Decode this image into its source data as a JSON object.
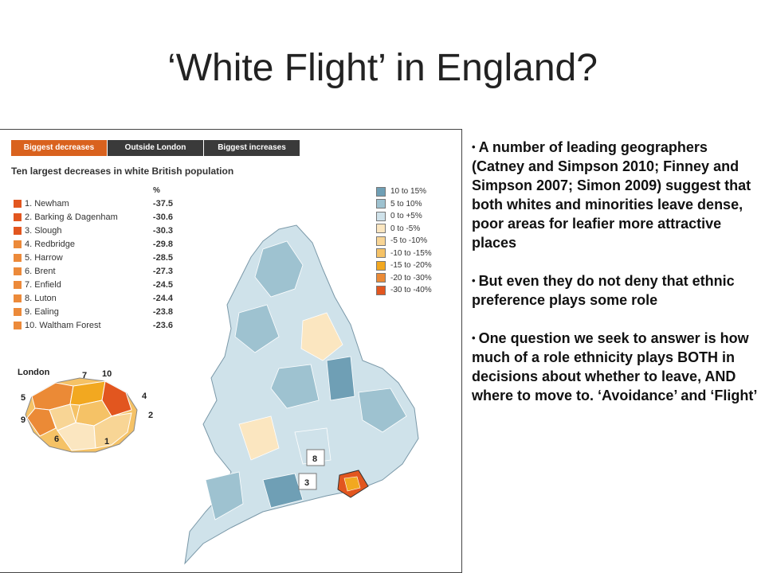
{
  "slide": {
    "title": "‘White Flight’ in England?"
  },
  "figure": {
    "tabs": [
      {
        "label": "Biggest decreases",
        "active": true,
        "color": "#d9621e"
      },
      {
        "label": "Outside London",
        "active": false,
        "color": "#3a3a3a"
      },
      {
        "label": "Biggest increases",
        "active": false,
        "color": "#3a3a3a"
      }
    ],
    "heading": "Ten largest decreases in white British population",
    "pct_header": "%",
    "ranking": [
      {
        "name": "1. Newham",
        "value": "-37.5",
        "color": "#e2561f"
      },
      {
        "name": "2. Barking & Dagenham",
        "value": "-30.6",
        "color": "#e2561f"
      },
      {
        "name": "3. Slough",
        "value": "-30.3",
        "color": "#e2561f"
      },
      {
        "name": "4. Redbridge",
        "value": "-29.8",
        "color": "#ec8a3a"
      },
      {
        "name": "5. Harrow",
        "value": "-28.5",
        "color": "#ec8a3a"
      },
      {
        "name": "6. Brent",
        "value": "-27.3",
        "color": "#ec8a3a"
      },
      {
        "name": "7. Enfield",
        "value": "-24.5",
        "color": "#ec8a3a"
      },
      {
        "name": "8. Luton",
        "value": "-24.4",
        "color": "#ec8a3a"
      },
      {
        "name": "9. Ealing",
        "value": "-23.8",
        "color": "#ec8a3a"
      },
      {
        "name": "10. Waltham Forest",
        "value": "-23.6",
        "color": "#ec8a3a"
      }
    ],
    "legend": [
      {
        "label": "10 to 15%",
        "color": "#6f9fb5"
      },
      {
        "label": "5 to 10%",
        "color": "#9ec2d0"
      },
      {
        "label": "0 to +5%",
        "color": "#cfe2ea"
      },
      {
        "label": "0 to -5%",
        "color": "#fbe6c0"
      },
      {
        "label": "-5 to -10%",
        "color": "#f8d595"
      },
      {
        "label": "-10 to -15%",
        "color": "#f5c266"
      },
      {
        "label": "-15 to -20%",
        "color": "#f2a820"
      },
      {
        "label": "-20 to -30%",
        "color": "#eb8a36"
      },
      {
        "label": "-30 to -40%",
        "color": "#e2561f"
      }
    ],
    "london_label": "London",
    "london_callouts": [
      "7",
      "10",
      "5",
      "4",
      "9",
      "2",
      "6",
      "1"
    ],
    "map_callouts": [
      "8",
      "3"
    ]
  },
  "bullets": [
    "A number of leading geographers (Catney and Simpson 2010; Finney and Simpson 2007; Simon 2009) suggest that both whites and minorities leave dense, poor areas for leafier more attractive places",
    "But even they do not deny that ethnic preference plays some role",
    "One question we seek to answer is how much of a role ethnicity plays BOTH in decisions about whether to leave, AND where to move to. ‘Avoidance’ and ‘Flight’"
  ]
}
